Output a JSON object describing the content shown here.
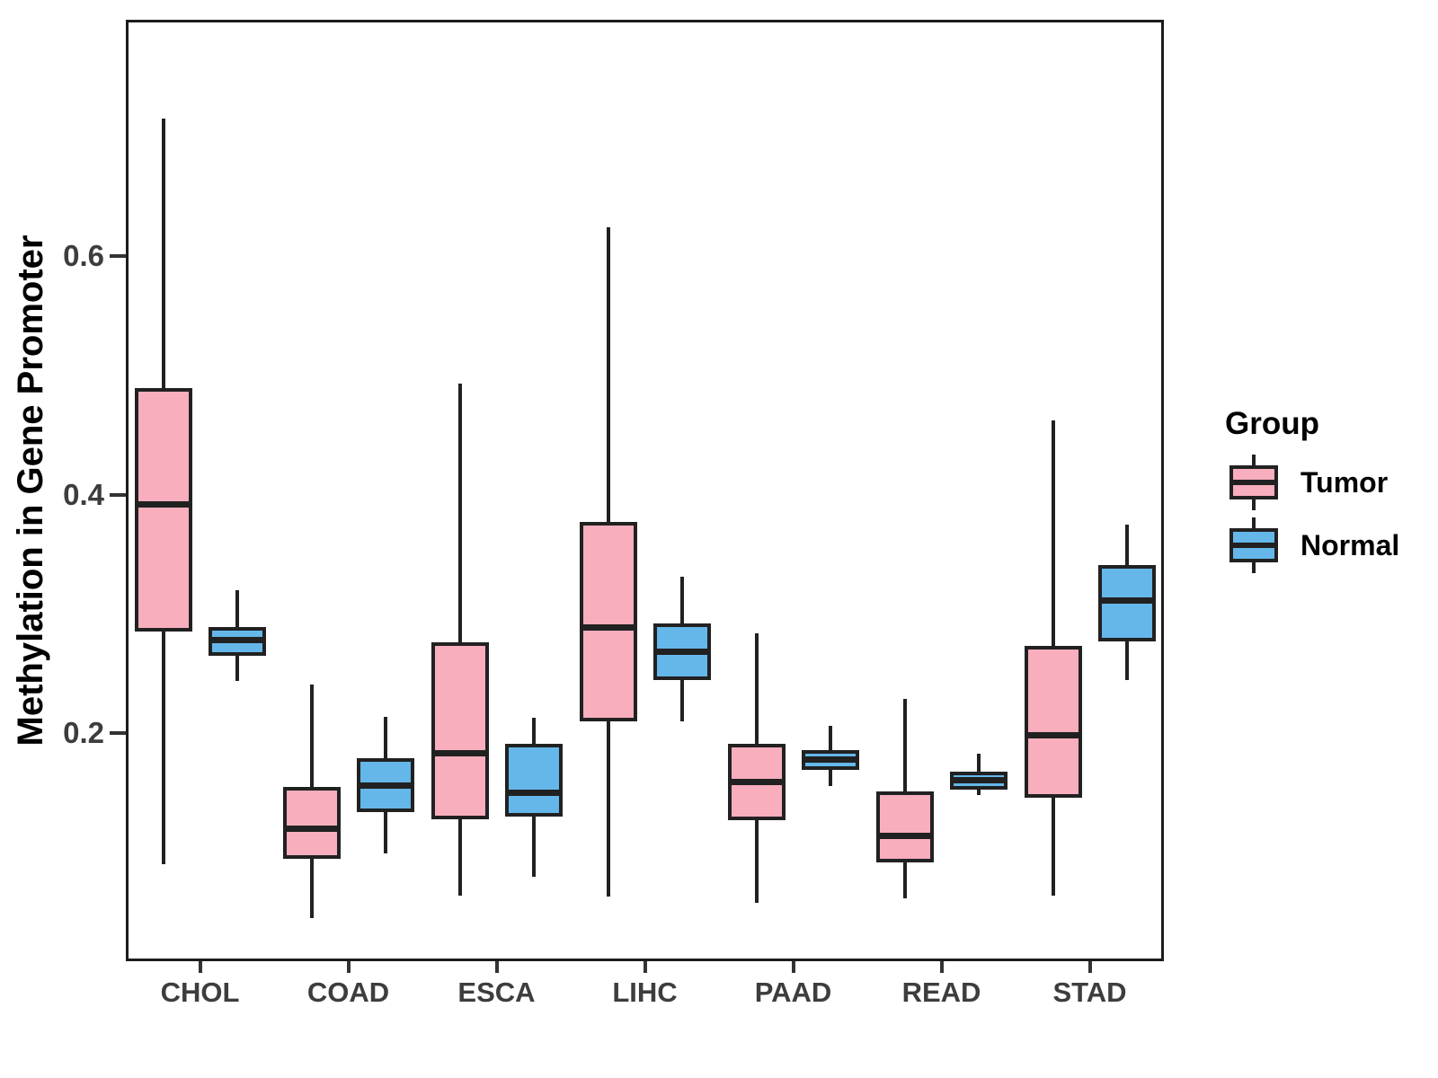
{
  "chart_data": {
    "type": "boxplot",
    "title": "",
    "ylabel": "Methylation in Gene Promoter",
    "xlabel": "",
    "ylim": [
      0.009,
      0.798
    ],
    "yticks": [
      0.2,
      0.4,
      0.6
    ],
    "ytick_labels": [
      "0.2",
      "0.4",
      "0.6"
    ],
    "grid": "off",
    "categories": [
      "CHOL",
      "COAD",
      "ESCA",
      "LIHC",
      "PAAD",
      "READ",
      "STAD"
    ],
    "series": [
      {
        "name": "Tumor",
        "color": "#f9aebd",
        "stats_format": [
          "whisker_low",
          "q1",
          "median",
          "q3",
          "whisker_high"
        ],
        "values": [
          [
            0.09,
            0.285,
            0.392,
            0.489,
            0.715
          ],
          [
            0.045,
            0.095,
            0.12,
            0.155,
            0.241
          ],
          [
            0.064,
            0.128,
            0.183,
            0.276,
            0.493
          ],
          [
            0.063,
            0.21,
            0.289,
            0.377,
            0.624
          ],
          [
            0.058,
            0.127,
            0.159,
            0.191,
            0.284
          ],
          [
            0.062,
            0.092,
            0.114,
            0.151,
            0.229
          ],
          [
            0.064,
            0.146,
            0.198,
            0.273,
            0.462
          ]
        ]
      },
      {
        "name": "Normal",
        "color": "#65b7e9",
        "stats_format": [
          "whisker_low",
          "q1",
          "median",
          "q3",
          "whisker_high"
        ],
        "values": [
          [
            0.244,
            0.265,
            0.278,
            0.289,
            0.32
          ],
          [
            0.099,
            0.134,
            0.156,
            0.179,
            0.214
          ],
          [
            0.08,
            0.13,
            0.15,
            0.191,
            0.213
          ],
          [
            0.21,
            0.245,
            0.268,
            0.292,
            0.331
          ],
          [
            0.156,
            0.169,
            0.178,
            0.186,
            0.206
          ],
          [
            0.148,
            0.153,
            0.161,
            0.168,
            0.183
          ],
          [
            0.245,
            0.277,
            0.311,
            0.341,
            0.375
          ]
        ]
      }
    ],
    "legend": {
      "title": "Group",
      "position": "right",
      "items": [
        {
          "label": "Tumor",
          "color": "#f9aebd"
        },
        {
          "label": "Normal",
          "color": "#65b7e9"
        }
      ]
    },
    "style": {
      "stroke_color": "#212121",
      "axis_text_color": "#3d3d3d",
      "panel_border_color": "#1c1c1c",
      "background": "#ffffff"
    }
  }
}
